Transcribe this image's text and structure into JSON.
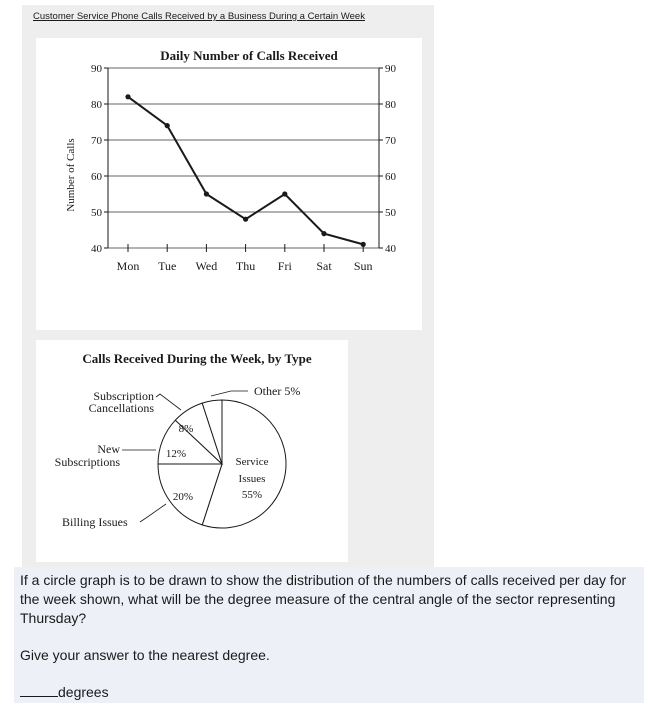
{
  "header": {
    "title": "Customer Service Phone Calls Received by a Business During a Certain Week"
  },
  "question": {
    "text": "If a circle graph is to be drawn to show the distribution of the numbers of calls received per day for the week shown, what will be the degree measure of the central angle of the sector representing Thursday?",
    "instruction": "Give your answer to the nearest degree.",
    "answer_suffix": "degrees"
  },
  "colors": {
    "line": "#1a1a1a",
    "grid": "#333333",
    "panel": "#eeeeee",
    "question_bg": "#edf0f7"
  },
  "chart_data": [
    {
      "type": "line",
      "title": "Daily Number of Calls Received",
      "ylabel": "Number of Calls",
      "xlabel": "",
      "categories": [
        "Mon",
        "Tue",
        "Wed",
        "Thu",
        "Fri",
        "Sat",
        "Sun"
      ],
      "values": [
        82,
        74,
        55,
        48,
        55,
        44,
        41
      ],
      "ylim": [
        40,
        90
      ],
      "yticks": [
        "40",
        "50",
        "60",
        "70",
        "80",
        "90"
      ],
      "grid": true,
      "right_axis": true
    },
    {
      "type": "pie",
      "title": "Calls Received During the Week, by Type",
      "slices": [
        {
          "label": "Service Issues",
          "value": 55,
          "text": "55%"
        },
        {
          "label": "Billing Issues",
          "value": 20,
          "text": "20%"
        },
        {
          "label": "New Subscriptions",
          "value": 12,
          "text": "12%"
        },
        {
          "label": "Subscription Cancellations",
          "value": 8,
          "text": "8%"
        },
        {
          "label": "Other",
          "value": 5,
          "text": "5%"
        }
      ],
      "callouts": {
        "other": "Other 5%",
        "subscription_1": "Subscription",
        "subscription_2": "Cancellations",
        "new_1": "New",
        "new_2": "Subscriptions",
        "billing": "Billing Issues",
        "service_1": "Service",
        "service_2": "Issues",
        "service_3": "55%"
      }
    }
  ]
}
